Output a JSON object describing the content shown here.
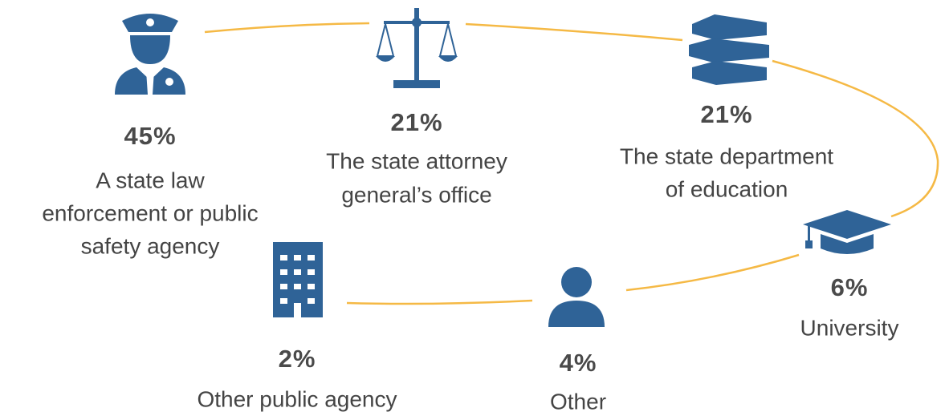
{
  "items": [
    {
      "percent": "45%",
      "label": [
        "A state law",
        "enforcement or public",
        "safety agency"
      ]
    },
    {
      "percent": "21%",
      "label": [
        "The state attorney",
        "general’s office"
      ]
    },
    {
      "percent": "21%",
      "label": [
        "The state department",
        "of education"
      ]
    },
    {
      "percent": "6%",
      "label": [
        "University"
      ]
    },
    {
      "percent": "4%",
      "label": [
        "Other"
      ]
    },
    {
      "percent": "2%",
      "label": [
        "Other public agency"
      ]
    }
  ]
}
